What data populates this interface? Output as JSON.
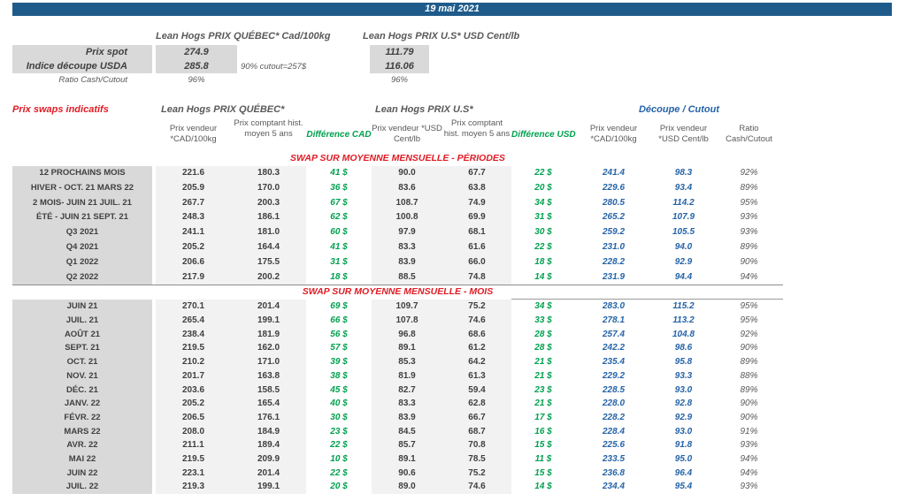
{
  "title_bar": {
    "date": "19 mai 2021"
  },
  "colors": {
    "header_bar": "#1f5b8a",
    "accent_red": "#e01b24",
    "accent_green": "#00a14f",
    "accent_blue": "#2563a8",
    "label_band": "#d9d9d9",
    "value_band": "#f2f2f2"
  },
  "spot": {
    "qc_header": "Lean Hogs PRIX QUÉBEC* Cad/100kg",
    "us_header": "Lean Hogs PRIX U.S* USD Cent/lb",
    "note": "90% cutout=257$",
    "rows": [
      {
        "label": "Prix spot",
        "qc": "274.9",
        "us": "111.79"
      },
      {
        "label": "Indice découpe USDA",
        "qc": "285.8",
        "us": "116.06"
      },
      {
        "label": "Ratio Cash/Cutout",
        "qc": "96%",
        "us": "96%"
      }
    ]
  },
  "swaps": {
    "title": "Prix swaps indicatifs",
    "groups": {
      "qc": "Lean Hogs PRIX QUÉBEC*",
      "us": "Lean Hogs PRIX U.S*",
      "cutout": "Découpe / Cutout"
    },
    "columns": [
      {
        "label": "Prix vendeur *CAD/100kg"
      },
      {
        "label": "Prix comptant hist. moyen 5 ans"
      },
      {
        "label": "Différence CAD"
      },
      {
        "label": "Prix vendeur *USD Cent/lb"
      },
      {
        "label": "Prix comptant hist. moyen 5 ans"
      },
      {
        "label": "Différence USD"
      },
      {
        "label": "Prix vendeur *CAD/100kg"
      },
      {
        "label": "Prix vendeur *USD Cent/lb"
      },
      {
        "label": "Ratio Cash/Cutout"
      }
    ]
  },
  "sections": [
    {
      "header": "SWAP SUR MOYENNE MENSUELLE - PÉRIODES",
      "rows": [
        [
          "12 PROCHAINS MOIS",
          "221.6",
          "180.3",
          "41 $",
          "90.0",
          "67.7",
          "22 $",
          "241.4",
          "98.3",
          "92%"
        ],
        [
          "HIVER - OCT. 21 MARS 22",
          "205.9",
          "170.0",
          "36 $",
          "83.6",
          "63.8",
          "20 $",
          "229.6",
          "93.4",
          "89%"
        ],
        [
          "2 MOIS- JUIN 21 JUIL. 21",
          "267.7",
          "200.3",
          "67 $",
          "108.7",
          "74.9",
          "34 $",
          "280.5",
          "114.2",
          "95%"
        ],
        [
          "ÉTÉ - JUIN 21 SEPT. 21",
          "248.3",
          "186.1",
          "62 $",
          "100.8",
          "69.9",
          "31 $",
          "265.2",
          "107.9",
          "93%"
        ],
        [
          "Q3 2021",
          "241.1",
          "181.0",
          "60 $",
          "97.9",
          "68.1",
          "30 $",
          "259.2",
          "105.5",
          "93%"
        ],
        [
          "Q4 2021",
          "205.2",
          "164.4",
          "41 $",
          "83.3",
          "61.6",
          "22 $",
          "231.0",
          "94.0",
          "89%"
        ],
        [
          "Q1 2022",
          "206.6",
          "175.5",
          "31 $",
          "83.9",
          "66.0",
          "18 $",
          "228.2",
          "92.9",
          "90%"
        ],
        [
          "Q2 2022",
          "217.9",
          "200.2",
          "18 $",
          "88.5",
          "74.8",
          "14 $",
          "231.9",
          "94.4",
          "94%"
        ]
      ]
    },
    {
      "header": "SWAP SUR MOYENNE MENSUELLE - MOIS",
      "rows": [
        [
          "JUIN 21",
          "270.1",
          "201.4",
          "69 $",
          "109.7",
          "75.2",
          "34 $",
          "283.0",
          "115.2",
          "95%"
        ],
        [
          "JUIL. 21",
          "265.4",
          "199.1",
          "66 $",
          "107.8",
          "74.6",
          "33 $",
          "278.1",
          "113.2",
          "95%"
        ],
        [
          "AOÛT 21",
          "238.4",
          "181.9",
          "56 $",
          "96.8",
          "68.6",
          "28 $",
          "257.4",
          "104.8",
          "92%"
        ],
        [
          "SEPT. 21",
          "219.5",
          "162.0",
          "57 $",
          "89.1",
          "61.2",
          "28 $",
          "242.2",
          "98.6",
          "90%"
        ],
        [
          "OCT. 21",
          "210.2",
          "171.0",
          "39 $",
          "85.3",
          "64.2",
          "21 $",
          "235.4",
          "95.8",
          "89%"
        ],
        [
          "NOV. 21",
          "201.7",
          "163.8",
          "38 $",
          "81.9",
          "61.3",
          "21 $",
          "229.2",
          "93.3",
          "88%"
        ],
        [
          "DÉC. 21",
          "203.6",
          "158.5",
          "45 $",
          "82.7",
          "59.4",
          "23 $",
          "228.5",
          "93.0",
          "89%"
        ],
        [
          "JANV. 22",
          "205.2",
          "165.4",
          "40 $",
          "83.3",
          "62.8",
          "21 $",
          "228.0",
          "92.8",
          "90%"
        ],
        [
          "FÉVR. 22",
          "206.5",
          "176.1",
          "30 $",
          "83.9",
          "66.7",
          "17 $",
          "228.2",
          "92.9",
          "90%"
        ],
        [
          "MARS 22",
          "208.0",
          "184.9",
          "23 $",
          "84.5",
          "68.7",
          "16 $",
          "228.4",
          "93.0",
          "91%"
        ],
        [
          "AVR. 22",
          "211.1",
          "189.4",
          "22 $",
          "85.7",
          "70.8",
          "15 $",
          "225.6",
          "91.8",
          "93%"
        ],
        [
          "MAI 22",
          "219.5",
          "209.9",
          "10 $",
          "89.1",
          "78.5",
          "11 $",
          "233.5",
          "95.0",
          "94%"
        ],
        [
          "JUIN 22",
          "223.1",
          "201.4",
          "22 $",
          "90.6",
          "75.2",
          "15 $",
          "236.8",
          "96.4",
          "94%"
        ],
        [
          "JUIL. 22",
          "219.3",
          "199.1",
          "20 $",
          "89.0",
          "74.6",
          "14 $",
          "234.4",
          "95.4",
          "93%"
        ]
      ]
    }
  ]
}
